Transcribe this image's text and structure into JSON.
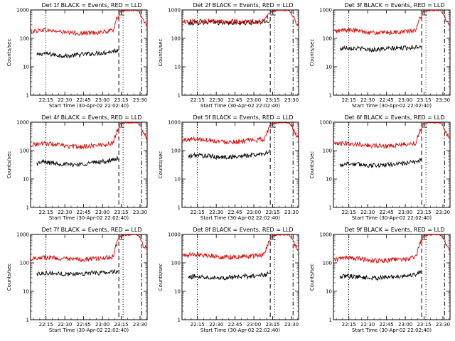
{
  "figure": {
    "title_template": "Det {det} BLACK = Events, RED = LLD",
    "series_colors": {
      "events": "#000000",
      "lld": "#e00000"
    }
  },
  "chart_data": [
    {
      "type": "line",
      "detector": "1f",
      "title": "Det 1f BLACK = Events, RED = LLD",
      "xlabel": "Start Time (30-Apr-02 22:02:40)",
      "ylabel": "Counts/sec",
      "yscale": "log",
      "ylim": [
        1,
        1000
      ],
      "ytick_labels": [
        "1",
        "10",
        "100",
        "1000"
      ],
      "xtick_labels": [
        "22:15",
        "22:30",
        "22:45",
        "23:00",
        "23:15",
        "23:30"
      ],
      "xlim_minutes": [
        0,
        93
      ],
      "series": [
        {
          "name": "Events",
          "color": "#000000",
          "x_minutes": [
            5,
            10,
            20,
            30,
            40,
            50,
            60,
            66,
            70
          ],
          "values": [
            25,
            30,
            26,
            24,
            27,
            29,
            32,
            35,
            40
          ]
        },
        {
          "name": "LLD",
          "color": "#e00000",
          "x_minutes": [
            0,
            10,
            20,
            30,
            40,
            50,
            60,
            66,
            70,
            72,
            76,
            84,
            86,
            90,
            93
          ],
          "values": [
            170,
            200,
            180,
            155,
            150,
            160,
            170,
            190,
            600,
            900,
            950,
            980,
            900,
            400,
            280
          ]
        }
      ]
    },
    {
      "type": "line",
      "detector": "2f",
      "title": "Det 2f BLACK = Events, RED = LLD",
      "xlabel": "Start Time (30-Apr-02 22:02:40)",
      "ylabel": "Counts/sec",
      "yscale": "log",
      "ylim": [
        1,
        1000
      ],
      "ytick_labels": [
        "1",
        "10",
        "100",
        "1000"
      ],
      "xtick_labels": [
        "22:15",
        "22:30",
        "22:45",
        "23:00",
        "23:15",
        "23:30"
      ],
      "xlim_minutes": [
        0,
        93
      ],
      "series": [
        {
          "name": "Events",
          "color": "#000000",
          "x_minutes": [
            5,
            10,
            20,
            30,
            40,
            50,
            60,
            66,
            70
          ],
          "values": [
            330,
            350,
            370,
            360,
            355,
            350,
            360,
            380,
            420
          ]
        },
        {
          "name": "LLD",
          "color": "#e00000",
          "x_minutes": [
            0,
            10,
            20,
            30,
            40,
            50,
            60,
            66,
            70,
            72,
            76,
            84,
            86,
            90,
            93
          ],
          "values": [
            380,
            400,
            410,
            400,
            390,
            380,
            390,
            420,
            700,
            900,
            950,
            980,
            900,
            400,
            280
          ]
        }
      ]
    },
    {
      "type": "line",
      "detector": "3f",
      "title": "Det 3f BLACK = Events, RED = LLD",
      "xlabel": "Start Time (30-Apr-02 22:02:40)",
      "ylabel": "Counts/sec",
      "yscale": "log",
      "ylim": [
        1,
        1000
      ],
      "ytick_labels": [
        "1",
        "10",
        "100",
        "1000"
      ],
      "xtick_labels": [
        "22:15",
        "22:30",
        "22:45",
        "23:00",
        "23:15",
        "23:30"
      ],
      "xlim_minutes": [
        0,
        93
      ],
      "series": [
        {
          "name": "Events",
          "color": "#000000",
          "x_minutes": [
            5,
            10,
            20,
            30,
            40,
            50,
            60,
            66,
            70
          ],
          "values": [
            42,
            48,
            44,
            40,
            42,
            45,
            47,
            50,
            55
          ]
        },
        {
          "name": "LLD",
          "color": "#e00000",
          "x_minutes": [
            0,
            10,
            20,
            30,
            40,
            50,
            60,
            66,
            70,
            72,
            76,
            84,
            86,
            90,
            93
          ],
          "values": [
            170,
            200,
            185,
            160,
            155,
            165,
            175,
            190,
            600,
            900,
            950,
            980,
            900,
            400,
            280
          ]
        }
      ]
    },
    {
      "type": "line",
      "detector": "4f",
      "title": "Det 4f BLACK = Events, RED = LLD",
      "xlabel": "Start Time (30-Apr-02 22:02:40)",
      "ylabel": "Counts/sec",
      "yscale": "log",
      "ylim": [
        1,
        1000
      ],
      "ytick_labels": [
        "1",
        "10",
        "100",
        "1000"
      ],
      "xtick_labels": [
        "22:15",
        "22:30",
        "22:45",
        "23:00",
        "23:15",
        "23:30"
      ],
      "xlim_minutes": [
        0,
        93
      ],
      "series": [
        {
          "name": "Events",
          "color": "#000000",
          "x_minutes": [
            5,
            10,
            20,
            30,
            40,
            50,
            60,
            66,
            70
          ],
          "values": [
            35,
            40,
            36,
            32,
            33,
            38,
            42,
            46,
            55
          ]
        },
        {
          "name": "LLD",
          "color": "#e00000",
          "x_minutes": [
            0,
            10,
            20,
            30,
            40,
            50,
            60,
            66,
            70,
            72,
            76,
            84,
            86,
            90,
            93
          ],
          "values": [
            160,
            180,
            165,
            140,
            135,
            150,
            165,
            185,
            600,
            900,
            950,
            980,
            900,
            400,
            280
          ]
        }
      ]
    },
    {
      "type": "line",
      "detector": "5f",
      "title": "Det 5f BLACK = Events, RED = LLD",
      "xlabel": "Start Time (30-Apr-02 22:02:40)",
      "ylabel": "Counts/sec",
      "yscale": "log",
      "ylim": [
        1,
        1000
      ],
      "ytick_labels": [
        "1",
        "10",
        "100",
        "1000"
      ],
      "xtick_labels": [
        "22:15",
        "22:30",
        "22:45",
        "23:00",
        "23:15",
        "23:30"
      ],
      "xlim_minutes": [
        0,
        93
      ],
      "series": [
        {
          "name": "Events",
          "color": "#000000",
          "x_minutes": [
            5,
            10,
            20,
            30,
            40,
            50,
            60,
            66,
            70
          ],
          "values": [
            60,
            70,
            65,
            58,
            60,
            65,
            72,
            80,
            95
          ]
        },
        {
          "name": "LLD",
          "color": "#e00000",
          "x_minutes": [
            0,
            10,
            20,
            30,
            40,
            50,
            60,
            66,
            70,
            72,
            76,
            84,
            86,
            90,
            93
          ],
          "values": [
            230,
            260,
            240,
            210,
            205,
            220,
            235,
            260,
            650,
            900,
            950,
            980,
            900,
            400,
            280
          ]
        }
      ]
    },
    {
      "type": "line",
      "detector": "6f",
      "title": "Det 6f BLACK = Events, RED = LLD",
      "xlabel": "Start Time (30-Apr-02 22:02:40)",
      "ylabel": "Counts/sec",
      "yscale": "log",
      "ylim": [
        1,
        1000
      ],
      "ytick_labels": [
        "1",
        "10",
        "100",
        "1000"
      ],
      "xtick_labels": [
        "22:15",
        "22:30",
        "22:45",
        "23:00",
        "23:15",
        "23:30"
      ],
      "xlim_minutes": [
        0,
        93
      ],
      "series": [
        {
          "name": "Events",
          "color": "#000000",
          "x_minutes": [
            5,
            10,
            20,
            30,
            40,
            50,
            60,
            66,
            70
          ],
          "values": [
            30,
            35,
            33,
            30,
            31,
            34,
            37,
            40,
            48
          ]
        },
        {
          "name": "LLD",
          "color": "#e00000",
          "x_minutes": [
            0,
            10,
            20,
            30,
            40,
            50,
            60,
            66,
            70,
            72,
            76,
            84,
            86,
            90,
            93
          ],
          "values": [
            160,
            185,
            170,
            150,
            145,
            155,
            170,
            185,
            600,
            900,
            950,
            980,
            900,
            400,
            280
          ]
        }
      ]
    },
    {
      "type": "line",
      "detector": "7f",
      "title": "Det 7f BLACK = Events, RED = LLD",
      "xlabel": "Start Time (30-Apr-02 22:02:40)",
      "ylabel": "Counts/sec",
      "yscale": "log",
      "ylim": [
        1,
        1000
      ],
      "ytick_labels": [
        "1",
        "10",
        "100",
        "1000"
      ],
      "xtick_labels": [
        "22:15",
        "22:30",
        "22:45",
        "23:00",
        "23:15",
        "23:30"
      ],
      "xlim_minutes": [
        0,
        93
      ],
      "series": [
        {
          "name": "Events",
          "color": "#000000",
          "x_minutes": [
            5,
            10,
            20,
            30,
            40,
            50,
            60,
            66,
            70
          ],
          "values": [
            40,
            45,
            42,
            40,
            42,
            44,
            46,
            48,
            52
          ]
        },
        {
          "name": "LLD",
          "color": "#e00000",
          "x_minutes": [
            0,
            10,
            20,
            30,
            40,
            50,
            60,
            66,
            70,
            72,
            76,
            84,
            86,
            90,
            93
          ],
          "values": [
            140,
            160,
            150,
            130,
            130,
            140,
            150,
            165,
            600,
            900,
            950,
            980,
            900,
            400,
            280
          ]
        }
      ]
    },
    {
      "type": "line",
      "detector": "8f",
      "title": "Det 8f BLACK = Events, RED = LLD",
      "xlabel": "Start Time (30-Apr-02 22:02:40)",
      "ylabel": "Counts/sec",
      "yscale": "log",
      "ylim": [
        1,
        1000
      ],
      "ytick_labels": [
        "1",
        "10",
        "100",
        "1000"
      ],
      "xtick_labels": [
        "22:15",
        "22:30",
        "22:45",
        "23:00",
        "23:15",
        "23:30"
      ],
      "xlim_minutes": [
        0,
        93
      ],
      "series": [
        {
          "name": "Events",
          "color": "#000000",
          "x_minutes": [
            5,
            10,
            20,
            30,
            40,
            50,
            60,
            66,
            70
          ],
          "values": [
            30,
            34,
            32,
            30,
            31,
            33,
            35,
            38,
            42
          ]
        },
        {
          "name": "LLD",
          "color": "#e00000",
          "x_minutes": [
            0,
            10,
            20,
            30,
            40,
            50,
            60,
            66,
            70,
            72,
            76,
            84,
            86,
            90,
            93
          ],
          "values": [
            180,
            200,
            185,
            160,
            160,
            170,
            180,
            200,
            600,
            900,
            950,
            980,
            900,
            400,
            280
          ]
        }
      ]
    },
    {
      "type": "line",
      "detector": "9f",
      "title": "Det 9f BLACK = Events, RED = LLD",
      "xlabel": "Start Time (30-Apr-02 22:02:40)",
      "ylabel": "Counts/sec",
      "yscale": "log",
      "ylim": [
        1,
        1000
      ],
      "ytick_labels": [
        "1",
        "10",
        "100",
        "1000"
      ],
      "xtick_labels": [
        "22:15",
        "22:30",
        "22:45",
        "23:00",
        "23:15",
        "23:30"
      ],
      "xlim_minutes": [
        0,
        93
      ],
      "series": [
        {
          "name": "Events",
          "color": "#000000",
          "x_minutes": [
            5,
            10,
            20,
            30,
            40,
            50,
            60,
            66,
            70
          ],
          "values": [
            30,
            35,
            32,
            29,
            30,
            33,
            36,
            40,
            50
          ]
        },
        {
          "name": "LLD",
          "color": "#e00000",
          "x_minutes": [
            0,
            10,
            20,
            30,
            40,
            50,
            60,
            66,
            70,
            72,
            76,
            84,
            86,
            90,
            93
          ],
          "values": [
            130,
            150,
            140,
            120,
            120,
            130,
            140,
            160,
            600,
            900,
            950,
            980,
            900,
            400,
            280
          ]
        }
      ]
    }
  ]
}
